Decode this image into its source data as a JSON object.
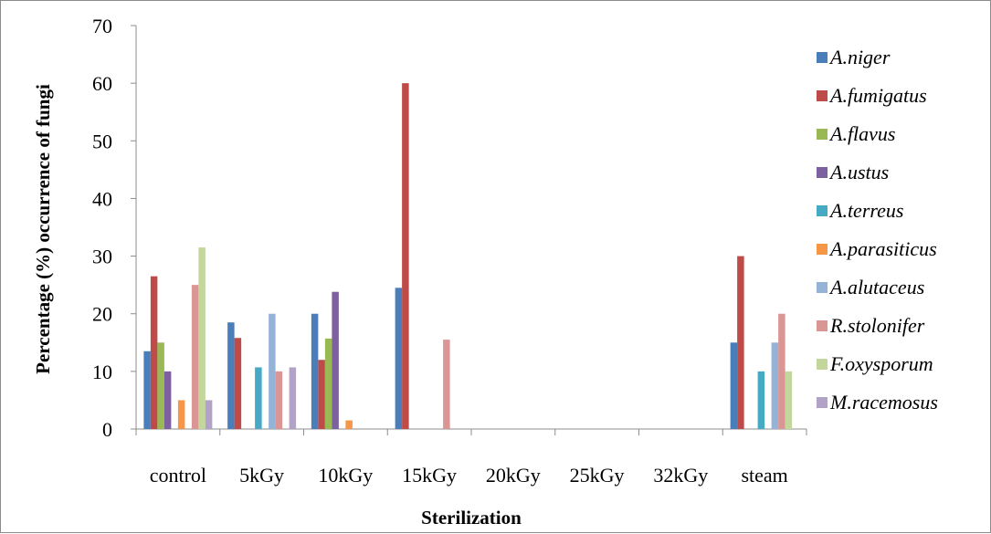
{
  "chart_data": {
    "type": "bar",
    "title": "",
    "xlabel": "Sterilization",
    "ylabel": "Percentage (%) occurrence of fungi",
    "ylim": [
      0,
      70
    ],
    "yticks": [
      0,
      10,
      20,
      30,
      40,
      50,
      60,
      70
    ],
    "grid": false,
    "legend_position": "right",
    "categories": [
      "control",
      "5kGy",
      "10kGy",
      "15kGy",
      "20kGy",
      "25kGy",
      "32kGy",
      "steam"
    ],
    "series": [
      {
        "name": "A.niger",
        "color": "#4a7ebb",
        "values": [
          13.5,
          18.5,
          20,
          24.5,
          0,
          0,
          0,
          15
        ]
      },
      {
        "name": "A.fumigatus",
        "color": "#be4b48",
        "values": [
          26.5,
          15.8,
          12,
          60,
          0,
          0,
          0,
          30
        ]
      },
      {
        "name": "A.flavus",
        "color": "#98b954",
        "values": [
          15,
          0,
          15.7,
          0,
          0,
          0,
          0,
          0
        ]
      },
      {
        "name": "A.ustus",
        "color": "#7d60a0",
        "values": [
          10,
          0,
          23.8,
          0,
          0,
          0,
          0,
          0
        ]
      },
      {
        "name": "A.terreus",
        "color": "#46aac5",
        "values": [
          0,
          10.7,
          0,
          0,
          0,
          0,
          0,
          10
        ]
      },
      {
        "name": "A.parasiticus",
        "color": "#f79646",
        "values": [
          5,
          0,
          1.5,
          0,
          0,
          0,
          0,
          0
        ]
      },
      {
        "name": "A.alutaceus",
        "color": "#95b3d7",
        "values": [
          0,
          20,
          0,
          0,
          0,
          0,
          0,
          15
        ]
      },
      {
        "name": "R.stolonifer",
        "color": "#d99694",
        "values": [
          25,
          10,
          0,
          15.5,
          0,
          0,
          0,
          20
        ]
      },
      {
        "name": "F.oxysporum",
        "color": "#c3d69b",
        "values": [
          31.5,
          0,
          0,
          0,
          0,
          0,
          0,
          10
        ]
      },
      {
        "name": "M.racemosus",
        "color": "#b3a2c7",
        "values": [
          5,
          10.7,
          0,
          0,
          0,
          0,
          0,
          0
        ]
      }
    ]
  }
}
